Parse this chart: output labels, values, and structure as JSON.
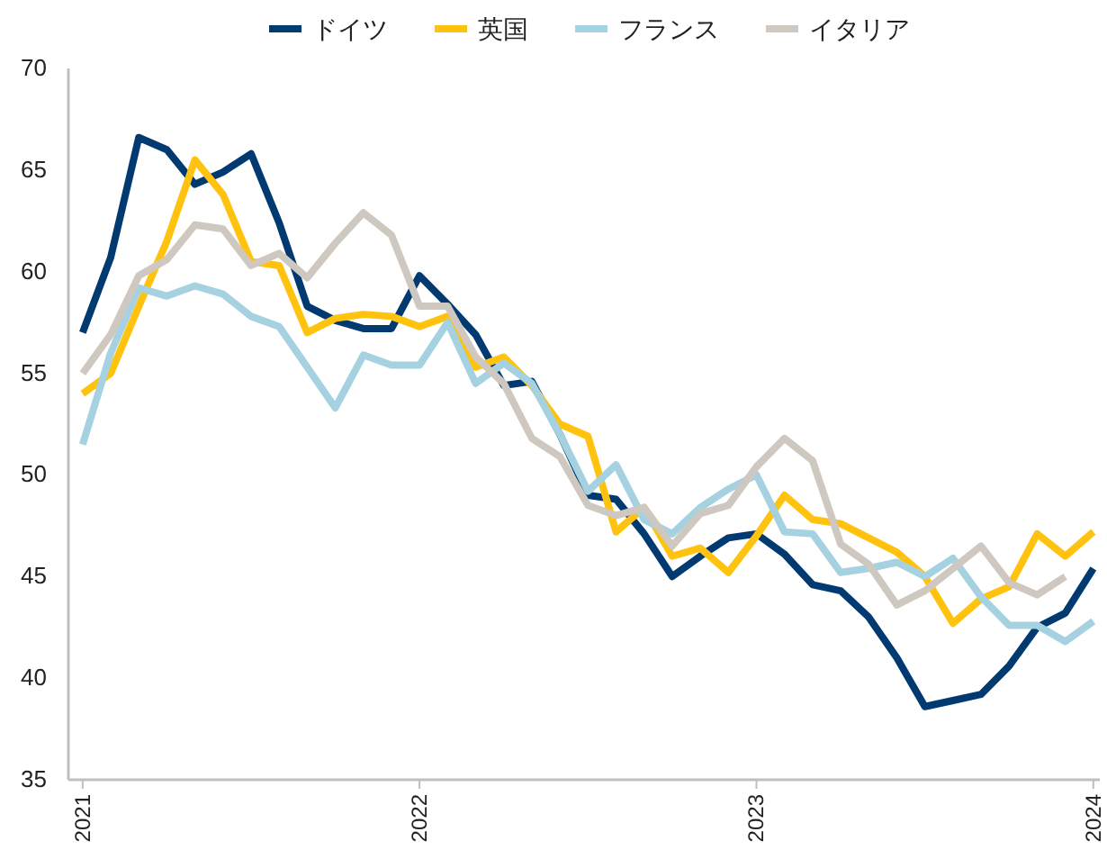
{
  "chart_data": {
    "type": "line",
    "x": [
      "2021-01",
      "2021-02",
      "2021-03",
      "2021-04",
      "2021-05",
      "2021-06",
      "2021-07",
      "2021-08",
      "2021-09",
      "2021-10",
      "2021-11",
      "2021-12",
      "2022-01",
      "2022-02",
      "2022-03",
      "2022-04",
      "2022-05",
      "2022-06",
      "2022-07",
      "2022-08",
      "2022-09",
      "2022-10",
      "2022-11",
      "2022-12",
      "2023-01",
      "2023-02",
      "2023-03",
      "2023-04",
      "2023-05",
      "2023-06",
      "2023-07",
      "2023-08",
      "2023-09",
      "2023-10",
      "2023-11",
      "2023-12",
      "2024-01"
    ],
    "series": [
      {
        "name": "ドイツ",
        "color": "#003a70",
        "values": [
          57.0,
          60.7,
          66.6,
          66.0,
          64.3,
          64.9,
          65.8,
          62.4,
          58.3,
          57.6,
          57.2,
          57.2,
          59.8,
          58.4,
          56.9,
          54.4,
          54.6,
          52.0,
          49.0,
          48.8,
          47.1,
          45.0,
          46.0,
          46.9,
          47.1,
          46.1,
          44.6,
          44.3,
          43.0,
          41.0,
          38.6,
          38.9,
          39.2,
          40.6,
          42.5,
          43.2,
          45.4
        ]
      },
      {
        "name": "英国",
        "color": "#ffc20e",
        "values": [
          54.0,
          55.0,
          58.3,
          61.5,
          65.5,
          63.8,
          60.5,
          60.3,
          57.0,
          57.7,
          57.9,
          57.8,
          57.3,
          57.8,
          55.3,
          55.8,
          54.4,
          52.5,
          51.9,
          47.2,
          48.4,
          46.0,
          46.4,
          45.2,
          47.0,
          49.0,
          47.8,
          47.6,
          46.9,
          46.2,
          45.0,
          42.7,
          43.9,
          44.5,
          47.1,
          46.0,
          47.2
        ]
      },
      {
        "name": "フランス",
        "color": "#a5d1e1",
        "values": [
          51.5,
          56.0,
          59.2,
          58.8,
          59.3,
          58.9,
          57.8,
          57.3,
          55.3,
          53.3,
          55.9,
          55.4,
          55.4,
          57.5,
          54.5,
          55.5,
          54.5,
          52.0,
          49.2,
          50.5,
          47.8,
          47.1,
          48.4,
          49.3,
          50.0,
          47.2,
          47.1,
          45.2,
          45.4,
          45.7,
          45.0,
          45.9,
          44.0,
          42.6,
          42.6,
          41.8,
          42.8
        ]
      },
      {
        "name": "イタリア",
        "color": "#cfc8c0",
        "values": [
          55.0,
          56.9,
          59.8,
          60.6,
          62.3,
          62.1,
          60.3,
          60.9,
          59.7,
          61.4,
          62.9,
          61.8,
          58.3,
          58.3,
          55.8,
          54.5,
          51.8,
          50.9,
          48.5,
          48.0,
          48.4,
          46.5,
          48.1,
          48.5,
          50.4,
          51.8,
          50.7,
          46.6,
          45.6,
          43.6,
          44.3,
          45.4,
          46.5,
          44.7,
          44.1,
          45.0,
          null
        ]
      }
    ],
    "xlim": [
      "2020-12-16",
      "2024-01-08"
    ],
    "xticks": [
      "2021",
      "2022",
      "2023",
      "2024"
    ],
    "ylim": [
      35,
      70
    ],
    "yticks": [
      35,
      40,
      45,
      50,
      55,
      60,
      65,
      70
    ],
    "legend": "top",
    "grid": false,
    "line_style": "solid",
    "marker": "none"
  }
}
